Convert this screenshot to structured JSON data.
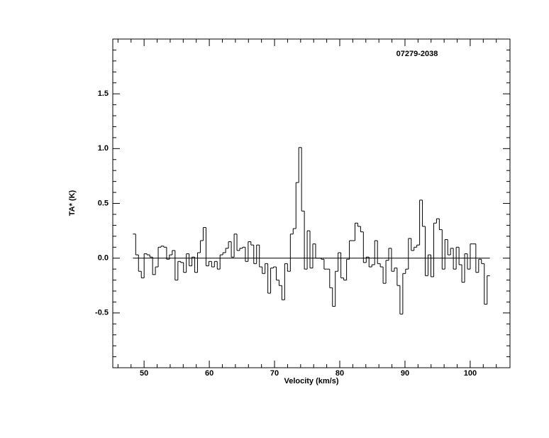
{
  "chart_data": {
    "type": "step",
    "title": "07279-2038",
    "x_label": "Velocity (km/s)",
    "y_label": "TA* (K)",
    "xlim": [
      45.2,
      106.1
    ],
    "ylim": [
      -1.0,
      2.0
    ],
    "xticks": [
      50,
      60,
      70,
      80,
      90,
      100
    ],
    "xminorticks": [
      46,
      48,
      52,
      54,
      56,
      58,
      62,
      64,
      66,
      68,
      72,
      74,
      76,
      78,
      82,
      84,
      86,
      88,
      92,
      94,
      96,
      98,
      102,
      104
    ],
    "yticks": [
      {
        "value": -0.5,
        "label": "-0.5"
      },
      {
        "value": 0,
        "label": "0.0"
      },
      0.5,
      {
        "value": 1,
        "label": "1.0"
      },
      1.5
    ],
    "yminorticks": [
      -0.9,
      -0.8,
      -0.7,
      -0.6,
      -0.4,
      -0.3,
      -0.2,
      -0.1,
      0.1,
      0.2,
      0.3,
      0.4,
      0.6,
      0.7,
      0.8,
      0.9,
      1.1,
      1.2,
      1.3,
      1.4,
      1.6,
      1.7,
      1.8,
      1.9
    ],
    "baseline": 0,
    "color": "#000000",
    "x": [
      48.5,
      48.93,
      49.36,
      49.79,
      50.22,
      50.66,
      51.09,
      51.52,
      51.95,
      52.38,
      52.81,
      53.24,
      53.67,
      54.1,
      54.53,
      54.97,
      55.4,
      55.83,
      56.26,
      56.69,
      57.12,
      57.55,
      57.98,
      58.41,
      58.84,
      59.28,
      59.71,
      60.14,
      60.57,
      61.0,
      61.43,
      61.86,
      62.29,
      62.72,
      63.15,
      63.59,
      64.02,
      64.45,
      64.88,
      65.31,
      65.74,
      66.17,
      66.6,
      67.03,
      67.46,
      67.9,
      68.33,
      68.76,
      69.19,
      69.62,
      70.05,
      70.48,
      70.91,
      71.34,
      71.77,
      72.21,
      72.64,
      73.07,
      73.5,
      73.93,
      74.36,
      74.79,
      75.22,
      75.65,
      76.08,
      76.52,
      76.95,
      77.38,
      77.81,
      78.24,
      78.67,
      79.1,
      79.53,
      79.96,
      80.39,
      80.83,
      81.26,
      81.69,
      82.12,
      82.55,
      82.98,
      83.41,
      83.84,
      84.27,
      84.7,
      85.14,
      85.57,
      86.0,
      86.43,
      86.86,
      87.29,
      87.72,
      88.15,
      88.58,
      89.01,
      89.45,
      89.88,
      90.31,
      90.74,
      91.17,
      91.6,
      92.03,
      92.46,
      92.89,
      93.32,
      93.76,
      94.19,
      94.62,
      95.05,
      95.48,
      95.91,
      96.34,
      96.77,
      97.2,
      97.63,
      98.07,
      98.5,
      98.93,
      99.36,
      99.79,
      100.22,
      100.65,
      101.08,
      101.51,
      101.94,
      102.38,
      102.81
    ],
    "values": [
      0.22,
      0.03,
      -0.12,
      -0.18,
      0.04,
      0.03,
      0.01,
      -0.15,
      -0.08,
      0.1,
      0.11,
      0.1,
      -0.01,
      0.03,
      0.07,
      -0.2,
      -0.03,
      -0.04,
      -0.13,
      0.04,
      -0.07,
      0.01,
      -0.13,
      0.05,
      0.16,
      0.28,
      -0.07,
      -0.03,
      -0.08,
      -0.03,
      -0.1,
      0.03,
      0.05,
      0.09,
      0.15,
      0.01,
      0.22,
      0.07,
      0.09,
      0.1,
      -0.03,
      0.15,
      0.12,
      -0.05,
      0.12,
      -0.08,
      -0.14,
      -0.05,
      -0.32,
      -0.09,
      -0.08,
      -0.2,
      -0.25,
      -0.38,
      -0.05,
      -0.12,
      0.22,
      0.27,
      0.69,
      1.01,
      0.43,
      -0.1,
      0.25,
      -0.09,
      0.13,
      0.0,
      0.0,
      -0.01,
      -0.1,
      -0.1,
      -0.27,
      -0.44,
      -0.12,
      0.05,
      -0.18,
      -0.2,
      -0.01,
      0.16,
      0.16,
      0.32,
      0.29,
      0.24,
      -0.04,
      0.01,
      -0.08,
      -0.06,
      0.16,
      -0.05,
      -0.08,
      -0.23,
      -0.02,
      0.09,
      -0.12,
      -0.09,
      -0.25,
      -0.51,
      -0.14,
      -0.1,
      0.18,
      0.07,
      0.1,
      0.12,
      0.53,
      0.29,
      -0.16,
      0.03,
      -0.17,
      0.32,
      0.36,
      0.26,
      -0.1,
      0.17,
      0.03,
      0.09,
      -0.1,
      0.1,
      -0.06,
      -0.22,
      0.04,
      -0.1,
      0.13,
      0.13,
      -0.13,
      -0.01,
      -0.05,
      -0.42,
      -0.16
    ]
  }
}
